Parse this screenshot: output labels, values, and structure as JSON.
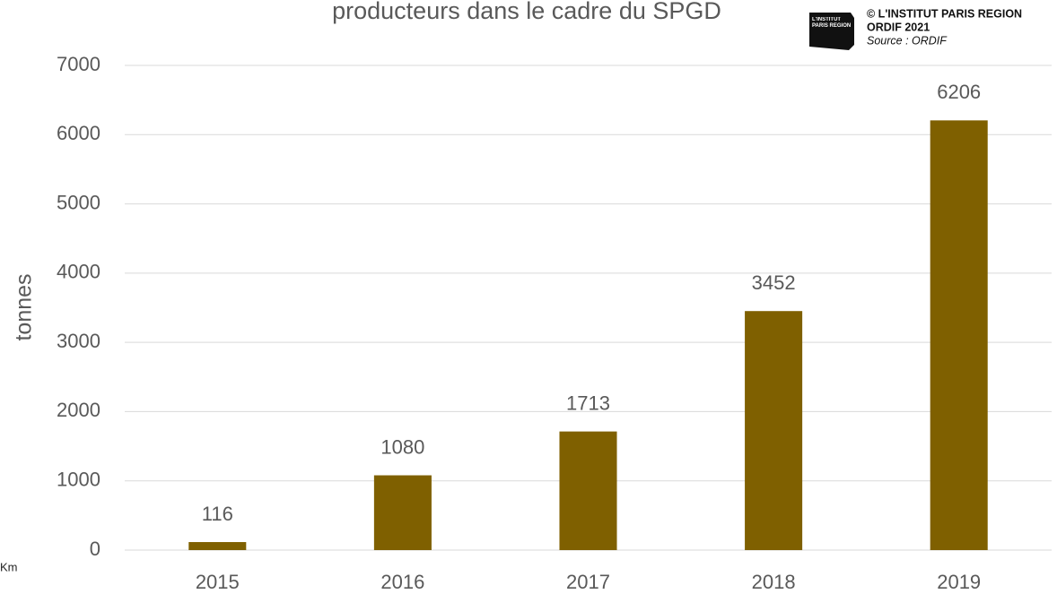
{
  "chart_data": {
    "type": "bar",
    "title": "producteurs dans le cadre du SPGD",
    "y_label": "tonnes",
    "categories": [
      "2015",
      "2016",
      "2017",
      "2018",
      "2019"
    ],
    "values": [
      116,
      1080,
      1713,
      3452,
      6206
    ],
    "color": "#7f6000",
    "ylim": [
      0,
      7000
    ],
    "yticks": [
      0,
      1000,
      2000,
      3000,
      4000,
      5000,
      6000,
      7000
    ],
    "grid": true
  },
  "credits": {
    "logo": "L'INSTITUT PARIS REGION",
    "copyright": "© L'INSTITUT PARIS REGION",
    "edition": "ORDIF 2021",
    "source": "Source : ORDIF"
  },
  "corner_note": "Km"
}
